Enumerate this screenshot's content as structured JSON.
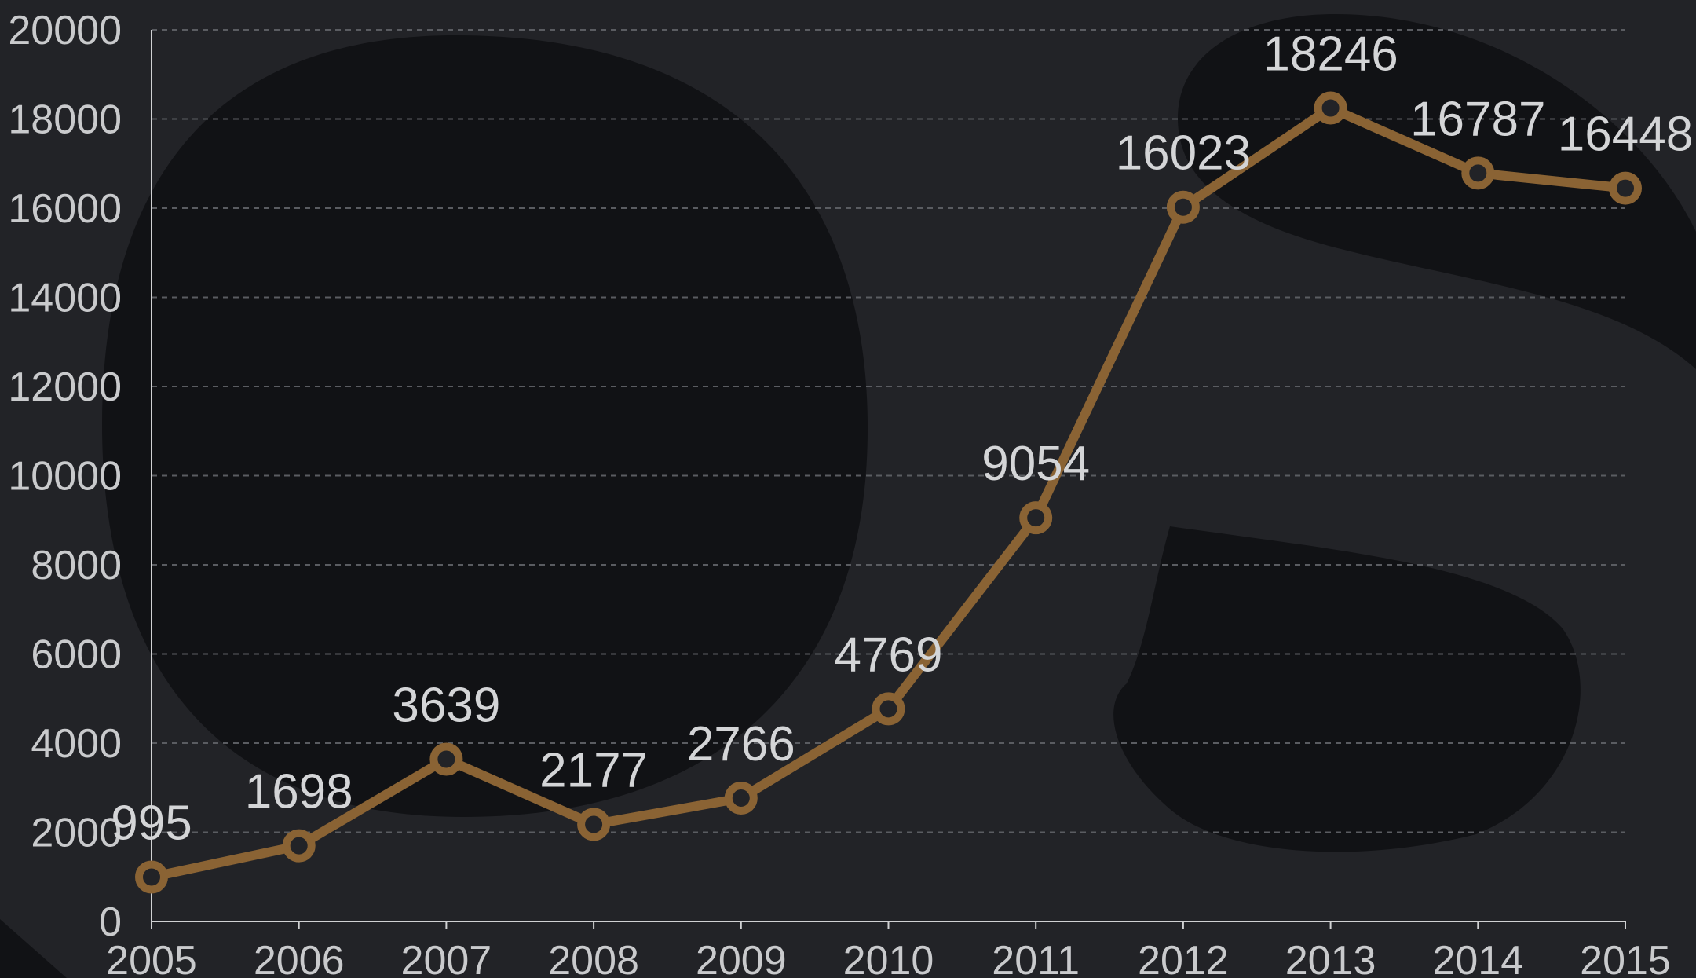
{
  "chart_data": {
    "type": "line",
    "x": [
      "2005",
      "2006",
      "2007",
      "2008",
      "2009",
      "2010",
      "2011",
      "2012",
      "2013",
      "2014",
      "2015"
    ],
    "series": [
      {
        "values": [
          995,
          1698,
          3639,
          2177,
          2766,
          4769,
          9054,
          16023,
          18246,
          16787,
          16448
        ]
      }
    ],
    "data_labels": [
      "995",
      "1698",
      "3639",
      "2177",
      "2766",
      "4769",
      "9054",
      "16023",
      "18246",
      "16787",
      "16448"
    ],
    "y_ticks": [
      "0",
      "2000",
      "4000",
      "6000",
      "8000",
      "10000",
      "12000",
      "14000",
      "16000",
      "18000",
      "20000"
    ],
    "ylim": [
      0,
      20000
    ],
    "grid": "horizontal dashed",
    "colors": {
      "background": "#222327",
      "line": "#8a6334",
      "grid": "#5a5c61",
      "axis": "#d0d1d3",
      "text": "#d4d5d7",
      "watermark": "#111215"
    }
  }
}
